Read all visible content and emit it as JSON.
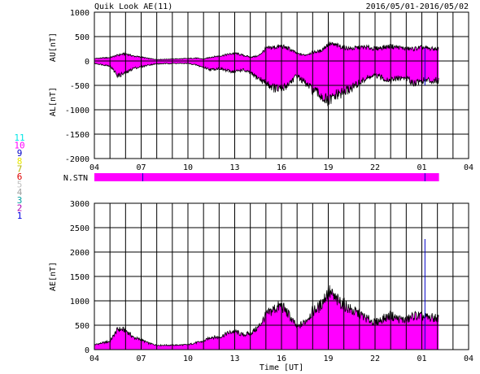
{
  "header": {
    "title": "Quik Look AE(11)",
    "date_range": "2016/05/01-2016/05/02"
  },
  "station_legend": [
    {
      "label": "11",
      "color": "#00e5e5"
    },
    {
      "label": "10",
      "color": "#ff00ff"
    },
    {
      "label": "9",
      "color": "#0000c8"
    },
    {
      "label": "8",
      "color": "#e8e800"
    },
    {
      "label": "7",
      "color": "#b4b400"
    },
    {
      "label": "6",
      "color": "#dd0000"
    },
    {
      "label": "5",
      "color": "#c0c0c0"
    },
    {
      "label": "4",
      "color": "#a0a0a0"
    },
    {
      "label": "3",
      "color": "#00a0a0"
    },
    {
      "label": "2",
      "color": "#b000b0"
    },
    {
      "label": "1",
      "color": "#0000e0"
    }
  ],
  "colors": {
    "fill": "#ff00ff",
    "marker": "#0000c8",
    "grid": "#000000"
  },
  "chart_data": [
    {
      "type": "area",
      "name": "au-al-panel",
      "ylabels": [
        "AU[nT]",
        "AL[nT]"
      ],
      "ylim": [
        -2000,
        1000
      ],
      "yticks": [
        1000,
        500,
        0,
        -500,
        -1000,
        -1500,
        -2000
      ],
      "xlim": [
        4,
        28
      ],
      "xticks": [
        "04",
        "07",
        "10",
        "13",
        "16",
        "19",
        "22",
        "01",
        "04"
      ],
      "data_end_hour": 26.1,
      "marker_hours": [
        25.2
      ],
      "series": [
        {
          "role": "AU",
          "x": [
            4.0,
            5.0,
            5.5,
            6.0,
            6.5,
            7.0,
            7.5,
            8.0,
            9.0,
            10.0,
            10.5,
            11.0,
            11.5,
            12.0,
            12.5,
            13.0,
            13.5,
            14.0,
            14.5,
            15.0,
            15.5,
            16.0,
            16.5,
            17.0,
            17.5,
            18.0,
            18.5,
            19.0,
            19.5,
            20.0,
            20.5,
            21.0,
            21.5,
            22.0,
            22.5,
            23.0,
            23.5,
            24.0,
            24.5,
            25.0,
            25.5,
            26.1
          ],
          "y": [
            50,
            70,
            120,
            150,
            100,
            80,
            50,
            30,
            40,
            50,
            60,
            40,
            80,
            100,
            130,
            160,
            120,
            80,
            100,
            250,
            280,
            300,
            250,
            150,
            120,
            180,
            200,
            350,
            320,
            280,
            250,
            280,
            280,
            250,
            280,
            300,
            280,
            250,
            250,
            280,
            250,
            250
          ]
        },
        {
          "role": "AL",
          "x": [
            4.0,
            5.0,
            5.5,
            6.0,
            6.5,
            7.0,
            7.5,
            8.0,
            9.0,
            10.0,
            10.5,
            11.0,
            11.5,
            12.0,
            12.5,
            13.0,
            13.5,
            14.0,
            14.5,
            15.0,
            15.5,
            16.0,
            16.5,
            17.0,
            17.5,
            18.0,
            18.5,
            19.0,
            19.5,
            20.0,
            20.5,
            21.0,
            21.5,
            22.0,
            22.5,
            23.0,
            23.5,
            24.0,
            24.5,
            25.0,
            25.5,
            26.1
          ],
          "y": [
            -50,
            -100,
            -300,
            -250,
            -150,
            -120,
            -80,
            -60,
            -50,
            -50,
            -80,
            -130,
            -180,
            -150,
            -200,
            -220,
            -180,
            -250,
            -350,
            -450,
            -550,
            -600,
            -450,
            -300,
            -450,
            -600,
            -700,
            -850,
            -700,
            -650,
            -550,
            -450,
            -350,
            -300,
            -350,
            -400,
            -350,
            -350,
            -450,
            -400,
            -400,
            -400
          ]
        }
      ]
    },
    {
      "type": "bar",
      "name": "station-count-strip",
      "ylabel": "N.STN",
      "xlim": [
        4,
        28
      ],
      "data_end_hour": 26.1,
      "marker_hours": [
        7.1,
        25.2
      ],
      "value": 10
    },
    {
      "type": "area",
      "name": "ae-panel",
      "ylabel": "AE[nT]",
      "xlabel": "Time [UT]",
      "ylim": [
        0,
        3000
      ],
      "yticks": [
        3000,
        2500,
        2000,
        1500,
        1000,
        500,
        0
      ],
      "xlim": [
        4,
        28
      ],
      "xticks": [
        "04",
        "07",
        "10",
        "13",
        "16",
        "19",
        "22",
        "01",
        "04"
      ],
      "data_end_hour": 26.1,
      "marker_hours": [
        25.2
      ],
      "series": [
        {
          "role": "AE",
          "x": [
            4.0,
            5.0,
            5.5,
            6.0,
            6.5,
            7.0,
            7.5,
            8.0,
            9.0,
            10.0,
            10.5,
            11.0,
            11.5,
            12.0,
            12.5,
            13.0,
            13.5,
            14.0,
            14.5,
            15.0,
            15.5,
            16.0,
            16.5,
            17.0,
            17.5,
            18.0,
            18.5,
            19.0,
            19.5,
            20.0,
            20.5,
            21.0,
            21.5,
            22.0,
            22.5,
            23.0,
            23.5,
            24.0,
            24.5,
            25.0,
            25.5,
            26.1
          ],
          "y": [
            100,
            170,
            420,
            400,
            250,
            200,
            130,
            90,
            90,
            100,
            140,
            170,
            260,
            250,
            330,
            380,
            300,
            330,
            450,
            700,
            830,
            900,
            700,
            450,
            570,
            780,
            900,
            1200,
            1020,
            930,
            800,
            730,
            630,
            550,
            630,
            700,
            630,
            600,
            700,
            680,
            650,
            650
          ]
        }
      ]
    }
  ]
}
